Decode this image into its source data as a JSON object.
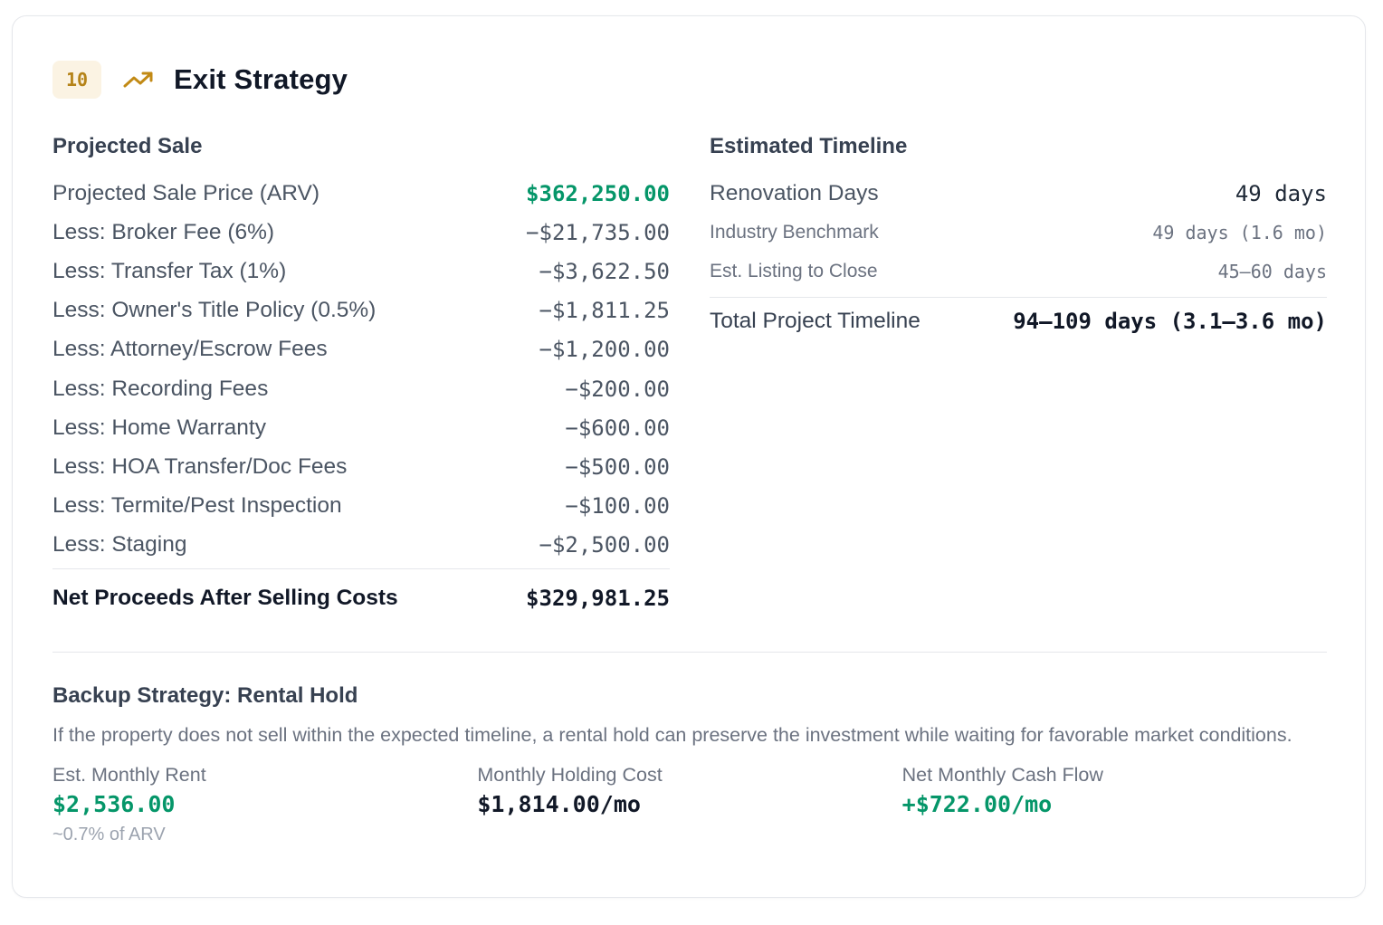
{
  "section": {
    "number": "10",
    "icon": "trending-up-icon",
    "title": "Exit Strategy"
  },
  "projected_sale": {
    "heading": "Projected Sale",
    "rows": [
      {
        "label": "Projected Sale Price (ARV)",
        "value": "$362,250.00"
      },
      {
        "label": "Less: Broker Fee (6%)",
        "value": "−$21,735.00"
      },
      {
        "label": "Less: Transfer Tax (1%)",
        "value": "−$3,622.50"
      },
      {
        "label": "Less: Owner's Title Policy (0.5%)",
        "value": "−$1,811.25"
      },
      {
        "label": "Less: Attorney/Escrow Fees",
        "value": "−$1,200.00"
      },
      {
        "label": "Less: Recording Fees",
        "value": "−$200.00"
      },
      {
        "label": "Less: Home Warranty",
        "value": "−$600.00"
      },
      {
        "label": "Less: HOA Transfer/Doc Fees",
        "value": "−$500.00"
      },
      {
        "label": "Less: Termite/Pest Inspection",
        "value": "−$100.00"
      },
      {
        "label": "Less: Staging",
        "value": "−$2,500.00"
      }
    ],
    "total_label": "Net Proceeds After Selling Costs",
    "total_value": "$329,981.25"
  },
  "timeline": {
    "heading": "Estimated Timeline",
    "renovation_label": "Renovation Days",
    "renovation_value": "49 days",
    "benchmark_label": "Industry Benchmark",
    "benchmark_value": "49 days (1.6 mo)",
    "listing_label": "Est. Listing to Close",
    "listing_value": "45–60 days",
    "total_label": "Total Project Timeline",
    "total_value": "94–109 days (3.1–3.6 mo)"
  },
  "backup": {
    "heading": "Backup Strategy: Rental Hold",
    "description": "If the property does not sell within the expected timeline, a rental hold can preserve the investment while waiting for favorable market conditions.",
    "rent_label": "Est. Monthly Rent",
    "rent_value": "$2,536.00",
    "rent_sub": "~0.7% of ARV",
    "holding_label": "Monthly Holding Cost",
    "holding_value": "$1,814.00/mo",
    "cashflow_label": "Net Monthly Cash Flow",
    "cashflow_value": "+$722.00/mo"
  },
  "colors": {
    "positive": "#059669",
    "badge_bg": "#fbf3e3",
    "badge_text": "#b58318",
    "icon": "#c28a15"
  }
}
